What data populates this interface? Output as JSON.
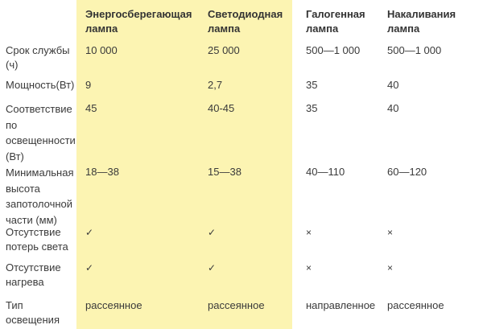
{
  "headers": [
    "",
    "Энергосберегающая лампа",
    "Светодиодная лампа",
    "Галогенная лампа",
    "Накаливания лампа"
  ],
  "highlight_color": "#fcf4b2",
  "rows": [
    {
      "label": "Срок службы (ч)",
      "values": [
        "10 000",
        "25 000",
        "500—1 000",
        "500—1 000"
      ]
    },
    {
      "label": "Мощность(Вт)",
      "values": [
        "9",
        "2,7",
        "35",
        "40"
      ]
    },
    {
      "label": "Соответствие по освещенности (Вт)",
      "values": [
        "45",
        "40-45",
        "35",
        "40"
      ]
    },
    {
      "label": "Минимальная высота запотолочной части (мм)",
      "values": [
        "18—38",
        "15—38",
        "40—110",
        "60—120"
      ]
    },
    {
      "label": "Отсутствие потерь света",
      "values": [
        "✓",
        "✓",
        "×",
        "×"
      ]
    },
    {
      "label": "Отсутствие нагрева",
      "values": [
        "✓",
        "✓",
        "×",
        "×"
      ]
    },
    {
      "label": "Тип освещения",
      "values": [
        "рассеянное",
        "рассеянное",
        "направленное",
        "рассеянное"
      ]
    }
  ]
}
